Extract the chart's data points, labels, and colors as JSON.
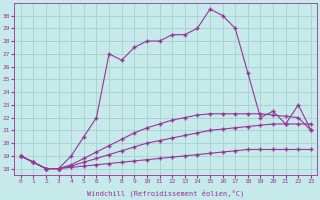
{
  "xlabel": "Windchill (Refroidissement éolien,°C)",
  "x_labels": [
    "0",
    "1",
    "2",
    "3",
    "4",
    "5",
    "6",
    "7",
    "8",
    "9",
    "10",
    "11",
    "12",
    "13",
    "14",
    "15",
    "16",
    "17",
    "18",
    "19",
    "20",
    "21",
    "22",
    "23"
  ],
  "ylim": [
    17.5,
    31.0
  ],
  "xlim": [
    -0.5,
    23.5
  ],
  "yticks": [
    18,
    19,
    20,
    21,
    22,
    23,
    24,
    25,
    26,
    27,
    28,
    29,
    30
  ],
  "background_color": "#c6e9e9",
  "grid_color": "#a0cccc",
  "line_color": "#993399",
  "series1_y": [
    19.0,
    18.5,
    18.0,
    18.0,
    18.1,
    18.2,
    18.3,
    18.4,
    18.5,
    18.6,
    18.7,
    18.8,
    18.9,
    19.0,
    19.1,
    19.2,
    19.3,
    19.4,
    19.5,
    19.5,
    19.5,
    19.5,
    19.5,
    19.5
  ],
  "series2_y": [
    19.0,
    18.5,
    18.0,
    18.0,
    18.2,
    18.5,
    18.8,
    19.1,
    19.4,
    19.7,
    20.0,
    20.2,
    20.4,
    20.6,
    20.8,
    21.0,
    21.1,
    21.2,
    21.3,
    21.4,
    21.5,
    21.5,
    21.5,
    21.5
  ],
  "series3_y": [
    19.0,
    18.5,
    18.0,
    18.0,
    18.3,
    18.8,
    19.3,
    19.8,
    20.3,
    20.8,
    21.2,
    21.5,
    21.8,
    22.0,
    22.2,
    22.3,
    22.3,
    22.3,
    22.3,
    22.3,
    22.2,
    22.1,
    22.0,
    21.0
  ],
  "series4_y": [
    19.0,
    18.5,
    18.0,
    18.0,
    19.0,
    20.5,
    22.0,
    27.0,
    26.5,
    27.5,
    28.0,
    28.0,
    28.5,
    28.5,
    29.0,
    30.5,
    30.0,
    29.0,
    25.5,
    22.0,
    22.5,
    21.5,
    23.0,
    21.0
  ],
  "marker": "+",
  "marker_size": 3,
  "line_width": 0.8
}
